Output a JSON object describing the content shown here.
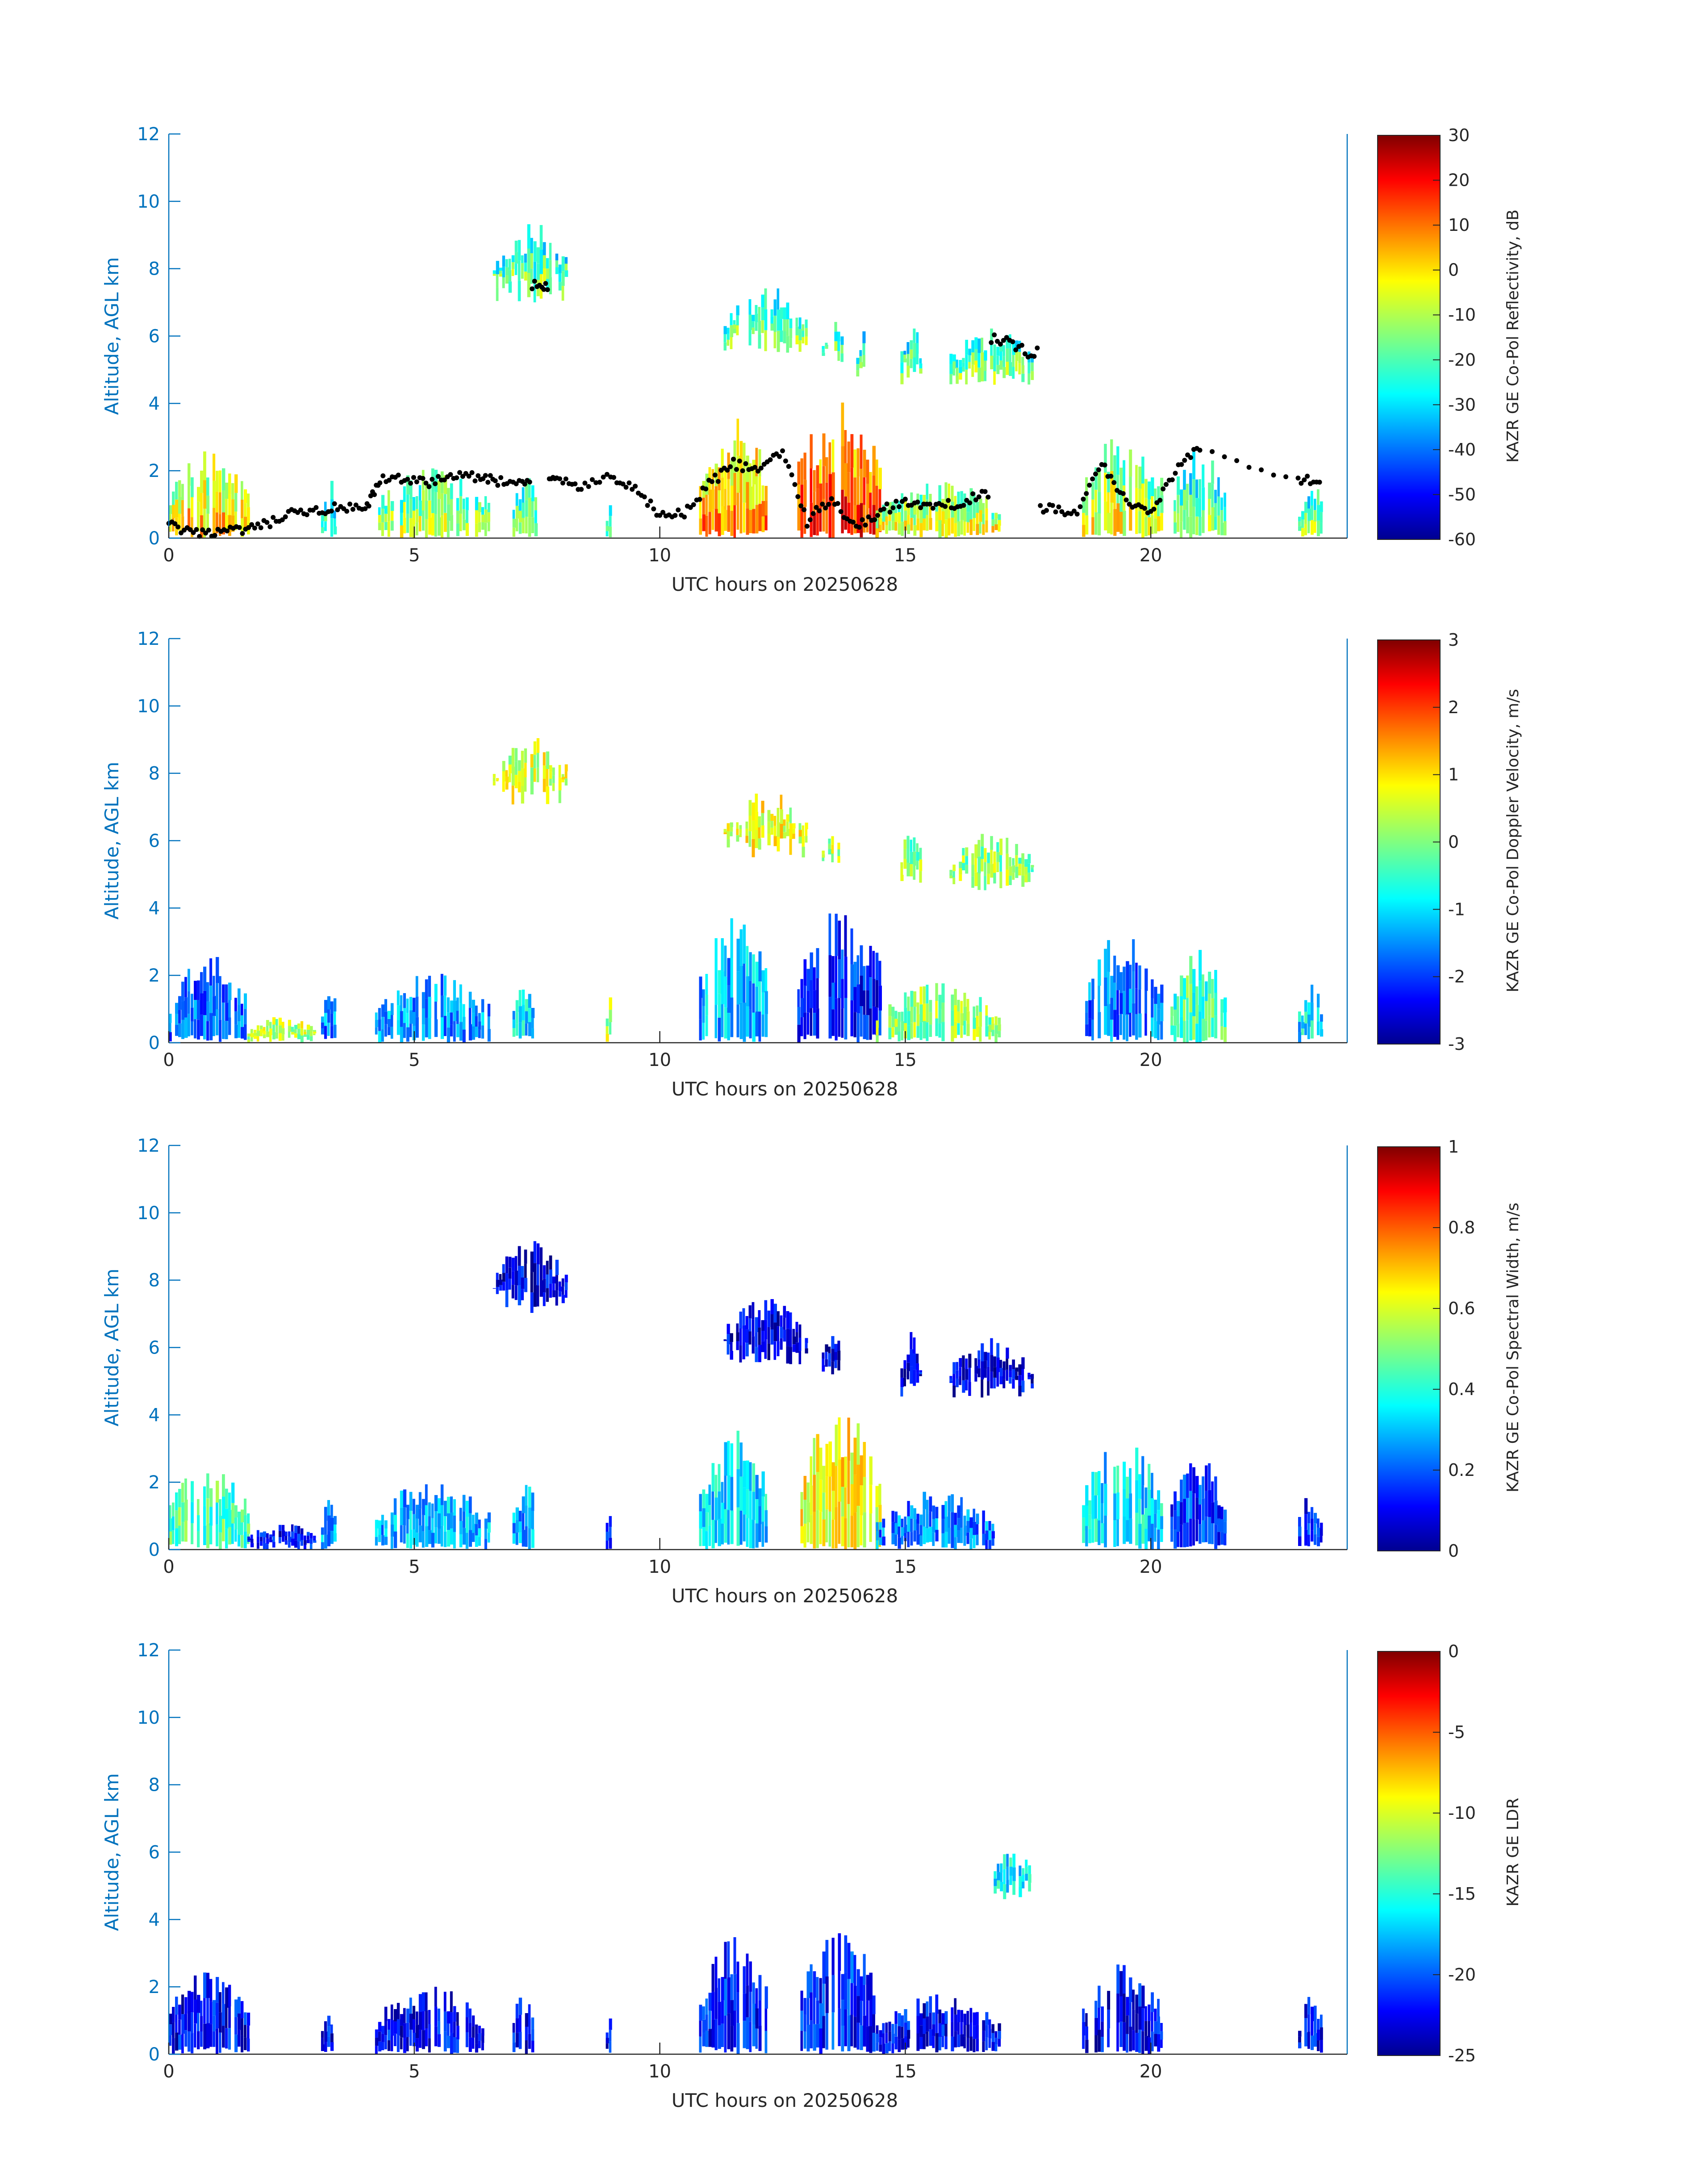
{
  "figure": {
    "panel_count": 4
  },
  "chart_data": [
    {
      "type": "heatmap",
      "title": "",
      "xlabel": "UTC hours on 20250628",
      "ylabel": "Altitude, AGL km",
      "xlim": [
        0,
        24
      ],
      "ylim": [
        0,
        12
      ],
      "xticks": [
        "0",
        "5",
        "10",
        "15",
        "20"
      ],
      "yticks": [
        "0",
        "2",
        "4",
        "6",
        "8",
        "10",
        "12"
      ],
      "colorbar": {
        "label": "KAZR GE Co-Pol Reflectivity, dB",
        "range": [
          -60,
          30
        ],
        "ticks": [
          "30",
          "20",
          "10",
          "0",
          "-10",
          "-20",
          "-30",
          "-40",
          "-50",
          "-60"
        ],
        "colormap": "jet"
      },
      "overlay": "cloud base points (black dots)",
      "regions": [
        {
          "t0": 0.0,
          "t1": 1.6,
          "z0": 0.0,
          "z1": 2.6,
          "v": 0.55
        },
        {
          "t0": 3.1,
          "t1": 3.4,
          "z0": 0.0,
          "z1": 1.8,
          "v": 0.35
        },
        {
          "t0": 4.2,
          "t1": 6.5,
          "z0": 0.0,
          "z1": 2.1,
          "v": 0.45
        },
        {
          "t0": 6.6,
          "t1": 8.1,
          "z0": 7.0,
          "z1": 9.4,
          "v": 0.38
        },
        {
          "t0": 7.0,
          "t1": 7.5,
          "z0": 0.0,
          "z1": 2.0,
          "v": 0.42
        },
        {
          "t0": 8.9,
          "t1": 9.0,
          "z0": 0.0,
          "z1": 1.5,
          "v": 0.35
        },
        {
          "t0": 10.8,
          "t1": 12.2,
          "z0": 0.0,
          "z1": 3.6,
          "v": 0.62
        },
        {
          "t0": 11.3,
          "t1": 13.0,
          "z0": 5.5,
          "z1": 7.5,
          "v": 0.4
        },
        {
          "t0": 12.8,
          "t1": 14.5,
          "z0": 0.0,
          "z1": 4.2,
          "v": 0.72
        },
        {
          "t0": 14.4,
          "t1": 16.9,
          "z0": 0.0,
          "z1": 1.8,
          "v": 0.5
        },
        {
          "t0": 13.3,
          "t1": 13.7,
          "z0": 5.2,
          "z1": 6.5,
          "v": 0.38
        },
        {
          "t0": 14.0,
          "t1": 14.3,
          "z0": 4.5,
          "z1": 6.3,
          "v": 0.38
        },
        {
          "t0": 14.9,
          "t1": 15.3,
          "z0": 4.5,
          "z1": 6.6,
          "v": 0.38
        },
        {
          "t0": 15.9,
          "t1": 17.6,
          "z0": 4.5,
          "z1": 6.3,
          "v": 0.4
        },
        {
          "t0": 18.6,
          "t1": 20.2,
          "z0": 0.0,
          "z1": 3.3,
          "v": 0.5
        },
        {
          "t0": 20.4,
          "t1": 21.5,
          "z0": 0.0,
          "z1": 2.8,
          "v": 0.4
        },
        {
          "t0": 23.0,
          "t1": 23.5,
          "z0": 0.0,
          "z1": 1.8,
          "v": 0.4
        }
      ],
      "cloud_base": [
        {
          "t": 0.0,
          "z": 0.4
        },
        {
          "t": 0.5,
          "z": 0.1
        },
        {
          "t": 1.0,
          "z": 0.2
        },
        {
          "t": 1.5,
          "z": 0.2
        },
        {
          "t": 2.0,
          "z": 0.4
        },
        {
          "t": 2.5,
          "z": 0.7
        },
        {
          "t": 3.0,
          "z": 0.8
        },
        {
          "t": 3.5,
          "z": 0.9
        },
        {
          "t": 4.0,
          "z": 0.8
        },
        {
          "t": 4.3,
          "z": 1.7
        },
        {
          "t": 4.8,
          "z": 1.8
        },
        {
          "t": 5.3,
          "z": 1.6
        },
        {
          "t": 5.8,
          "z": 1.9
        },
        {
          "t": 6.3,
          "z": 1.8
        },
        {
          "t": 6.7,
          "z": 1.7
        },
        {
          "t": 7.2,
          "z": 1.6
        },
        {
          "t": 7.6,
          "z": 7.5
        },
        {
          "t": 7.9,
          "z": 1.8
        },
        {
          "t": 8.4,
          "z": 1.5
        },
        {
          "t": 9.0,
          "z": 1.8
        },
        {
          "t": 9.5,
          "z": 1.4
        },
        {
          "t": 10.0,
          "z": 0.7
        },
        {
          "t": 10.5,
          "z": 0.7
        },
        {
          "t": 11.0,
          "z": 1.6
        },
        {
          "t": 11.5,
          "z": 2.2
        },
        {
          "t": 12.0,
          "z": 2.0
        },
        {
          "t": 12.5,
          "z": 2.6
        },
        {
          "t": 13.0,
          "z": 0.5
        },
        {
          "t": 13.5,
          "z": 1.2
        },
        {
          "t": 14.0,
          "z": 0.3
        },
        {
          "t": 14.5,
          "z": 0.8
        },
        {
          "t": 15.0,
          "z": 1.1
        },
        {
          "t": 15.5,
          "z": 0.9
        },
        {
          "t": 16.0,
          "z": 1.0
        },
        {
          "t": 16.5,
          "z": 1.3
        },
        {
          "t": 17.0,
          "z": 5.9
        },
        {
          "t": 17.5,
          "z": 5.5
        },
        {
          "t": 18.0,
          "z": 0.9
        },
        {
          "t": 18.5,
          "z": 0.7
        },
        {
          "t": 19.0,
          "z": 2.2
        },
        {
          "t": 19.5,
          "z": 1.1
        },
        {
          "t": 20.0,
          "z": 0.8
        },
        {
          "t": 20.5,
          "z": 2.0
        },
        {
          "t": 21.0,
          "z": 2.7
        },
        {
          "t": 23.0,
          "z": 1.7
        },
        {
          "t": 23.5,
          "z": 1.8
        }
      ]
    },
    {
      "type": "heatmap",
      "title": "",
      "xlabel": "UTC hours on 20250628",
      "ylabel": "Altitude, AGL km",
      "xlim": [
        0,
        24
      ],
      "ylim": [
        0,
        12
      ],
      "xticks": [
        "0",
        "5",
        "10",
        "15",
        "20"
      ],
      "yticks": [
        "0",
        "2",
        "4",
        "6",
        "8",
        "10",
        "12"
      ],
      "colorbar": {
        "label": "KAZR GE Co-Pol Doppler Velocity, m/s",
        "range": [
          -3,
          3
        ],
        "ticks": [
          "3",
          "2",
          "1",
          "0",
          "-1",
          "-2",
          "-3"
        ],
        "colormap": "jet"
      },
      "regions": [
        {
          "t0": 0.0,
          "t1": 1.6,
          "z0": 0.0,
          "z1": 2.6,
          "v": 0.22
        },
        {
          "t0": 1.6,
          "t1": 3.0,
          "z0": 0.0,
          "z1": 0.8,
          "v": 0.55
        },
        {
          "t0": 3.1,
          "t1": 3.4,
          "z0": 0.0,
          "z1": 1.8,
          "v": 0.25
        },
        {
          "t0": 4.2,
          "t1": 6.5,
          "z0": 0.0,
          "z1": 2.1,
          "v": 0.28
        },
        {
          "t0": 6.6,
          "t1": 8.1,
          "z0": 7.0,
          "z1": 9.2,
          "v": 0.58
        },
        {
          "t0": 7.0,
          "t1": 7.5,
          "z0": 0.0,
          "z1": 2.0,
          "v": 0.35
        },
        {
          "t0": 8.9,
          "t1": 9.0,
          "z0": 0.0,
          "z1": 1.5,
          "v": 0.55
        },
        {
          "t0": 10.8,
          "t1": 12.2,
          "z0": 0.0,
          "z1": 3.8,
          "v": 0.3
        },
        {
          "t0": 11.3,
          "t1": 13.0,
          "z0": 5.5,
          "z1": 7.5,
          "v": 0.6
        },
        {
          "t0": 12.8,
          "t1": 14.5,
          "z0": 0.0,
          "z1": 4.2,
          "v": 0.15
        },
        {
          "t0": 14.4,
          "t1": 16.9,
          "z0": 0.0,
          "z1": 1.8,
          "v": 0.52
        },
        {
          "t0": 13.3,
          "t1": 13.7,
          "z0": 5.2,
          "z1": 6.5,
          "v": 0.55
        },
        {
          "t0": 14.9,
          "t1": 15.3,
          "z0": 4.5,
          "z1": 6.6,
          "v": 0.5
        },
        {
          "t0": 15.9,
          "t1": 17.6,
          "z0": 4.5,
          "z1": 6.3,
          "v": 0.52
        },
        {
          "t0": 18.6,
          "t1": 20.2,
          "z0": 0.0,
          "z1": 3.3,
          "v": 0.25
        },
        {
          "t0": 20.4,
          "t1": 21.5,
          "z0": 0.0,
          "z1": 2.8,
          "v": 0.45
        },
        {
          "t0": 23.0,
          "t1": 23.5,
          "z0": 0.0,
          "z1": 1.8,
          "v": 0.35
        }
      ]
    },
    {
      "type": "heatmap",
      "title": "",
      "xlabel": "UTC hours on 20250628",
      "ylabel": "Altitude, AGL km",
      "xlim": [
        0,
        24
      ],
      "ylim": [
        0,
        12
      ],
      "xticks": [
        "0",
        "5",
        "10",
        "15",
        "20"
      ],
      "yticks": [
        "0",
        "2",
        "4",
        "6",
        "8",
        "10",
        "12"
      ],
      "colorbar": {
        "label": "KAZR GE Co-Pol Spectral Width, m/s",
        "range": [
          0,
          1
        ],
        "ticks": [
          "1",
          "0.8",
          "0.6",
          "0.4",
          "0.2",
          "0"
        ],
        "colormap": "jet"
      },
      "regions": [
        {
          "t0": 0.0,
          "t1": 1.6,
          "z0": 0.0,
          "z1": 2.6,
          "v": 0.45
        },
        {
          "t0": 1.6,
          "t1": 3.0,
          "z0": 0.0,
          "z1": 0.8,
          "v": 0.12
        },
        {
          "t0": 3.1,
          "t1": 3.4,
          "z0": 0.0,
          "z1": 1.8,
          "v": 0.3
        },
        {
          "t0": 4.2,
          "t1": 6.5,
          "z0": 0.0,
          "z1": 2.1,
          "v": 0.3
        },
        {
          "t0": 6.6,
          "t1": 8.1,
          "z0": 7.0,
          "z1": 9.2,
          "v": 0.1
        },
        {
          "t0": 7.0,
          "t1": 7.5,
          "z0": 0.0,
          "z1": 2.0,
          "v": 0.3
        },
        {
          "t0": 8.9,
          "t1": 9.0,
          "z0": 0.0,
          "z1": 1.5,
          "v": 0.15
        },
        {
          "t0": 10.8,
          "t1": 12.2,
          "z0": 0.0,
          "z1": 3.6,
          "v": 0.35
        },
        {
          "t0": 11.3,
          "t1": 13.0,
          "z0": 5.5,
          "z1": 7.5,
          "v": 0.1
        },
        {
          "t0": 12.8,
          "t1": 14.5,
          "z0": 0.0,
          "z1": 4.2,
          "v": 0.62
        },
        {
          "t0": 14.4,
          "t1": 16.9,
          "z0": 0.0,
          "z1": 1.8,
          "v": 0.25
        },
        {
          "t0": 13.3,
          "t1": 13.7,
          "z0": 5.2,
          "z1": 6.5,
          "v": 0.1
        },
        {
          "t0": 14.9,
          "t1": 15.3,
          "z0": 4.5,
          "z1": 6.6,
          "v": 0.1
        },
        {
          "t0": 15.9,
          "t1": 17.6,
          "z0": 4.5,
          "z1": 6.3,
          "v": 0.1
        },
        {
          "t0": 18.6,
          "t1": 20.2,
          "z0": 0.0,
          "z1": 3.3,
          "v": 0.35
        },
        {
          "t0": 20.4,
          "t1": 21.5,
          "z0": 0.0,
          "z1": 2.8,
          "v": 0.18
        },
        {
          "t0": 23.0,
          "t1": 23.5,
          "z0": 0.0,
          "z1": 1.8,
          "v": 0.15
        }
      ]
    },
    {
      "type": "heatmap",
      "title": "",
      "xlabel": "UTC hours on 20250628",
      "ylabel": "Altitude, AGL km",
      "xlim": [
        0,
        24
      ],
      "ylim": [
        0,
        12
      ],
      "xticks": [
        "0",
        "5",
        "10",
        "15",
        "20"
      ],
      "yticks": [
        "0",
        "2",
        "4",
        "6",
        "8",
        "10",
        "12"
      ],
      "colorbar": {
        "label": "KAZR GE LDR",
        "range": [
          -25,
          0
        ],
        "ticks": [
          "0",
          "-5",
          "-10",
          "-15",
          "-20",
          "-25"
        ],
        "colormap": "jet"
      },
      "regions": [
        {
          "t0": 0.0,
          "t1": 1.6,
          "z0": 0.0,
          "z1": 2.6,
          "v": 0.12
        },
        {
          "t0": 3.1,
          "t1": 3.3,
          "z0": 0.0,
          "z1": 1.7,
          "v": 0.12
        },
        {
          "t0": 4.2,
          "t1": 6.4,
          "z0": 0.0,
          "z1": 2.1,
          "v": 0.12
        },
        {
          "t0": 7.0,
          "t1": 7.4,
          "z0": 0.0,
          "z1": 2.0,
          "v": 0.12
        },
        {
          "t0": 8.9,
          "t1": 9.0,
          "z0": 0.0,
          "z1": 1.6,
          "v": 0.12
        },
        {
          "t0": 10.8,
          "t1": 12.2,
          "z0": 0.0,
          "z1": 3.5,
          "v": 0.14
        },
        {
          "t0": 12.8,
          "t1": 14.5,
          "z0": 0.0,
          "z1": 3.7,
          "v": 0.16
        },
        {
          "t0": 14.4,
          "t1": 16.9,
          "z0": 0.0,
          "z1": 1.8,
          "v": 0.12
        },
        {
          "t0": 16.8,
          "t1": 17.6,
          "z0": 4.6,
          "z1": 6.2,
          "v": 0.35
        },
        {
          "t0": 18.6,
          "t1": 20.2,
          "z0": 0.0,
          "z1": 2.7,
          "v": 0.12
        },
        {
          "t0": 23.0,
          "t1": 23.5,
          "z0": 0.0,
          "z1": 1.8,
          "v": 0.12
        }
      ]
    }
  ]
}
